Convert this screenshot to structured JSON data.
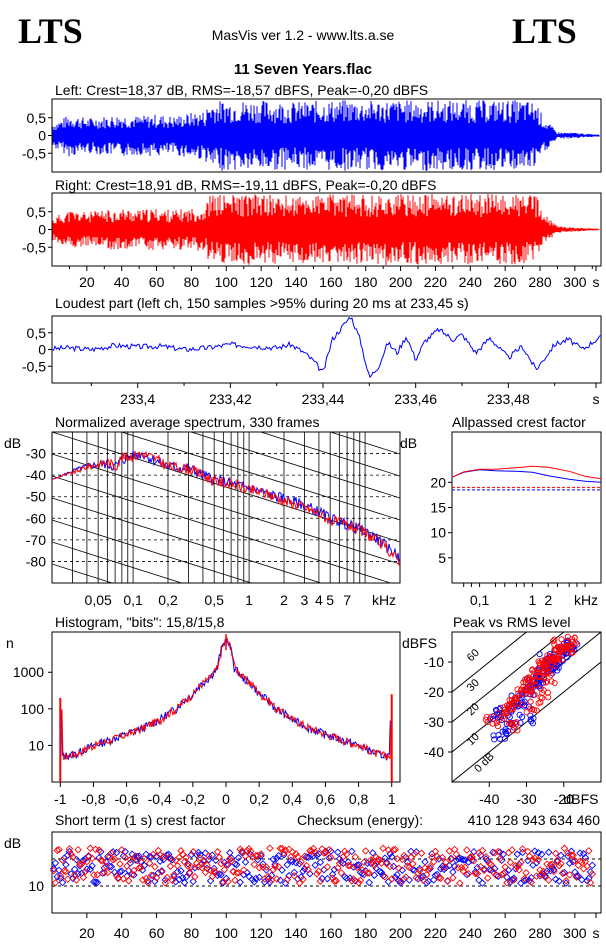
{
  "header": {
    "logo_left": "LTS",
    "logo_right": "LTS",
    "app_title": "MasVis ver 1.2 - www.lts.a.se",
    "file_title": "11 Seven Years.flac"
  },
  "colors": {
    "left": "#0000ff",
    "right": "#ff0000",
    "grid": "#000000"
  },
  "chart_data": [
    {
      "id": "left-waveform",
      "type": "area",
      "title": "Left: Crest=18,37 dB, RMS=-18,57 dBFS, Peak=-0,20 dBFS",
      "series": [
        {
          "name": "Left",
          "color": "#0000ff"
        }
      ],
      "x": [
        0,
        5,
        10,
        20,
        30,
        40,
        50,
        60,
        70,
        80,
        88,
        90,
        100,
        120,
        140,
        160,
        175,
        178,
        190,
        210,
        230,
        250,
        270,
        278,
        282,
        290,
        300,
        310
      ],
      "y_envelope": [
        0.35,
        0.45,
        0.6,
        0.5,
        0.55,
        0.6,
        0.55,
        0.6,
        0.55,
        0.65,
        0.7,
        0.98,
        1.0,
        1.0,
        0.95,
        1.0,
        1.0,
        0.98,
        1.0,
        1.0,
        1.0,
        1.0,
        1.0,
        0.95,
        0.5,
        0.1,
        0.08,
        0.04
      ],
      "yticks": [
        "0,5",
        "0",
        "-0,5"
      ],
      "ylim": [
        -1,
        1
      ],
      "xlim": [
        0,
        315
      ]
    },
    {
      "id": "right-waveform",
      "type": "area",
      "title": "Right: Crest=18,91 dB, RMS=-19,11 dBFS, Peak=-0,20 dBFS",
      "series": [
        {
          "name": "Right",
          "color": "#ff0000"
        }
      ],
      "x": [
        0,
        5,
        10,
        20,
        30,
        40,
        50,
        60,
        70,
        80,
        88,
        90,
        100,
        120,
        140,
        160,
        175,
        178,
        190,
        210,
        230,
        250,
        270,
        278,
        282,
        290,
        300,
        310
      ],
      "y_envelope": [
        0.3,
        0.45,
        0.55,
        0.5,
        0.55,
        0.6,
        0.55,
        0.6,
        0.55,
        0.6,
        0.65,
        0.98,
        1.0,
        1.0,
        0.95,
        1.0,
        1.0,
        0.98,
        1.0,
        1.0,
        1.0,
        1.0,
        1.0,
        0.95,
        0.45,
        0.1,
        0.06,
        0.03
      ],
      "yticks": [
        "0,5",
        "0",
        "-0,5"
      ],
      "xticks": [
        "20",
        "40",
        "60",
        "80",
        "100",
        "120",
        "140",
        "160",
        "180",
        "200",
        "220",
        "240",
        "260",
        "280",
        "300",
        "s"
      ],
      "ylim": [
        -1,
        1
      ],
      "xlim": [
        0,
        315
      ]
    },
    {
      "id": "loudest-part",
      "type": "line",
      "title": "Loudest part (left  ch, 150 samples >95% during 20 ms at 233,45 s)",
      "series": [
        {
          "name": "Left",
          "color": "#0000ff"
        }
      ],
      "x": [
        233.3815,
        233.385,
        233.39,
        233.395,
        233.4,
        233.405,
        233.41,
        233.415,
        233.42,
        233.425,
        233.43,
        233.433,
        233.436,
        233.438,
        233.44,
        233.442,
        233.444,
        233.446,
        233.448,
        233.45,
        233.452,
        233.454,
        233.456,
        233.458,
        233.46,
        233.462,
        233.465,
        233.468,
        233.47,
        233.473,
        233.476,
        233.48,
        233.483,
        233.486,
        233.49,
        233.493,
        233.496,
        233.4995
      ],
      "y": [
        0.02,
        0.05,
        0.0,
        0.12,
        0.08,
        0.1,
        0.0,
        0.05,
        0.15,
        0.1,
        0.05,
        0.15,
        -0.1,
        -0.35,
        -0.7,
        0.3,
        0.65,
        1.0,
        0.3,
        -0.85,
        -0.5,
        0.2,
        -0.1,
        0.4,
        -0.3,
        0.25,
        0.6,
        0.3,
        0.45,
        -0.1,
        0.35,
        -0.25,
        0.1,
        -0.6,
        0.15,
        0.3,
        0.0,
        0.35
      ],
      "yticks": [
        "0,5",
        "0",
        "-0,5"
      ],
      "xticks": [
        "233,4",
        "233,42",
        "233,44",
        "233,46",
        "233,48",
        "s"
      ],
      "ylim": [
        -1,
        1
      ],
      "xlim": [
        233.3815,
        233.5
      ]
    },
    {
      "id": "spectrum",
      "type": "line",
      "title": "Normalized average spectrum, 330 frames",
      "ylabel": "dB",
      "series": [
        {
          "name": "Left",
          "color": "#0000ff"
        },
        {
          "name": "Right",
          "color": "#ff0000"
        }
      ],
      "x": [
        0.02,
        0.025,
        0.03,
        0.04,
        0.05,
        0.06,
        0.07,
        0.08,
        0.1,
        0.12,
        0.15,
        0.2,
        0.3,
        0.4,
        0.5,
        0.7,
        1,
        1.5,
        2,
        3,
        4,
        5,
        7,
        10,
        13,
        16,
        20
      ],
      "left": [
        -42,
        -40,
        -38,
        -36,
        -35,
        -35,
        -36,
        -33,
        -31,
        -30,
        -33,
        -36,
        -37,
        -40,
        -42,
        -44,
        -46,
        -49,
        -51,
        -54,
        -57,
        -60,
        -63,
        -66,
        -70,
        -74,
        -78
      ],
      "right": [
        -42,
        -40,
        -39,
        -36,
        -35,
        -34,
        -36,
        -32,
        -31,
        -30,
        -32,
        -36,
        -37,
        -40,
        -43,
        -44,
        -47,
        -49,
        -52,
        -55,
        -58,
        -61,
        -63,
        -67,
        -71,
        -75,
        -80
      ],
      "xscale": "log",
      "xticks": [
        "0,05",
        "0,1",
        "0,2",
        "0,5",
        "1",
        "2",
        "3",
        "4",
        "5",
        "7",
        "kHz"
      ],
      "yticks": [
        "-30",
        "-40",
        "-50",
        "-60",
        "-70",
        "-80"
      ],
      "ylim": [
        -90,
        -20
      ],
      "xlim": [
        0.02,
        20
      ]
    },
    {
      "id": "allpassed-crest",
      "type": "line",
      "title": "Allpassed crest factor",
      "ylabel": "dB",
      "series": [
        {
          "name": "Left",
          "color": "#0000ff"
        },
        {
          "name": "Right",
          "color": "#ff0000"
        }
      ],
      "x": [
        0.03,
        0.05,
        0.1,
        0.2,
        0.5,
        1,
        2,
        5,
        10,
        20
      ],
      "left": [
        21,
        22,
        22.5,
        22.3,
        22.2,
        22,
        21.3,
        20.6,
        20.2,
        20
      ],
      "right": [
        21,
        22.1,
        22.6,
        22.6,
        22.9,
        23.2,
        23.0,
        22.2,
        21.2,
        20.7
      ],
      "dashed_left": 18.5,
      "dashed_right": 19.0,
      "xscale": "log",
      "xticks": [
        "0,1",
        "1",
        "2",
        "kHz"
      ],
      "yticks": [
        "20",
        "15",
        "10",
        "5"
      ],
      "ylim": [
        0,
        30
      ],
      "xlim": [
        0.03,
        20
      ]
    },
    {
      "id": "histogram",
      "type": "line",
      "title": "Histogram, \"bits\": 15,8/15,8",
      "ylabel": "n",
      "series": [
        {
          "name": "Left",
          "color": "#0000ff"
        },
        {
          "name": "Right",
          "color": "#ff0000"
        }
      ],
      "x": [
        -1.0,
        -0.99,
        -0.9,
        -0.8,
        -0.7,
        -0.6,
        -0.5,
        -0.4,
        -0.3,
        -0.2,
        -0.1,
        -0.05,
        0.0,
        0.05,
        0.1,
        0.2,
        0.3,
        0.4,
        0.5,
        0.6,
        0.7,
        0.8,
        0.9,
        0.99,
        1.0
      ],
      "y": [
        200,
        5,
        6,
        10,
        14,
        20,
        30,
        50,
        100,
        250,
        700,
        1300,
        8000,
        1300,
        700,
        250,
        100,
        50,
        30,
        20,
        14,
        10,
        6,
        5,
        250
      ],
      "yscale": "log",
      "xticks": [
        "-1",
        "-0,8",
        "-0,6",
        "-0,4",
        "-0,2",
        "0",
        "0,2",
        "0,4",
        "0,6",
        "0,8",
        "1"
      ],
      "yticks": [
        "1000",
        "100",
        "10"
      ],
      "xlim": [
        -1.05,
        1.05
      ]
    },
    {
      "id": "peak-vs-rms",
      "type": "scatter",
      "title": "Peak vs RMS level",
      "ylabel": "dBFS",
      "xlabel": "dBFS",
      "series": [
        {
          "name": "Left",
          "color": "#0000ff"
        },
        {
          "name": "Right",
          "color": "#ff0000"
        }
      ],
      "points_left": [
        [
          -38,
          -28
        ],
        [
          -36,
          -27
        ],
        [
          -34,
          -25
        ],
        [
          -32,
          -22
        ],
        [
          -31,
          -23
        ],
        [
          -30,
          -20
        ],
        [
          -29,
          -18
        ],
        [
          -28,
          -17
        ],
        [
          -27,
          -15
        ],
        [
          -26,
          -14
        ],
        [
          -25,
          -12
        ],
        [
          -24,
          -11
        ],
        [
          -23,
          -10
        ],
        [
          -22,
          -8
        ],
        [
          -21,
          -7
        ],
        [
          -20,
          -6
        ],
        [
          -19,
          -5
        ],
        [
          -18,
          -4
        ],
        [
          -22,
          -12
        ],
        [
          -25,
          -9
        ],
        [
          -35,
          -32
        ],
        [
          -37,
          -34
        ],
        [
          -30,
          -29
        ]
      ],
      "points_right": [
        [
          -39,
          -30
        ],
        [
          -37,
          -27
        ],
        [
          -35,
          -24
        ],
        [
          -33,
          -23
        ],
        [
          -31,
          -21
        ],
        [
          -30,
          -19
        ],
        [
          -29,
          -17
        ],
        [
          -28,
          -16
        ],
        [
          -27,
          -14
        ],
        [
          -26,
          -13
        ],
        [
          -25,
          -11
        ],
        [
          -24,
          -10
        ],
        [
          -23,
          -9
        ],
        [
          -22,
          -8
        ],
        [
          -21,
          -7
        ],
        [
          -20,
          -6
        ],
        [
          -19,
          -5
        ],
        [
          -18,
          -3
        ],
        [
          -24,
          -15
        ],
        [
          -26,
          -20
        ],
        [
          -34,
          -31
        ],
        [
          -28,
          -25
        ],
        [
          -21,
          -4
        ]
      ],
      "diagonal_labels": [
        "60",
        "30",
        "20",
        "10",
        "0 dB"
      ],
      "xticks": [
        "-40",
        "-30",
        "-20",
        "dBFS"
      ],
      "yticks": [
        "-10",
        "-20",
        "-30",
        "-40"
      ],
      "xlim": [
        -50,
        -10
      ],
      "ylim": [
        -50,
        0
      ]
    },
    {
      "id": "short-term-crest",
      "type": "scatter",
      "title": "Short term (1 s) crest factor",
      "checksum_label": "Checksum (energy):",
      "checksum_value": "410 128 943 634 460",
      "ylabel": "dB",
      "series": [
        {
          "name": "Left",
          "color": "#0000ff"
        },
        {
          "name": "Right",
          "color": "#ff0000"
        }
      ],
      "x_range": [
        1,
        310
      ],
      "y_band_left": [
        10.5,
        16.5
      ],
      "y_band_right": [
        10.5,
        17
      ],
      "yticks": [
        "10"
      ],
      "xticks": [
        "20",
        "40",
        "60",
        "80",
        "100",
        "120",
        "140",
        "160",
        "180",
        "200",
        "220",
        "240",
        "260",
        "280",
        "300",
        "s"
      ],
      "ylim": [
        5,
        20
      ],
      "xlim": [
        0,
        315
      ]
    }
  ]
}
